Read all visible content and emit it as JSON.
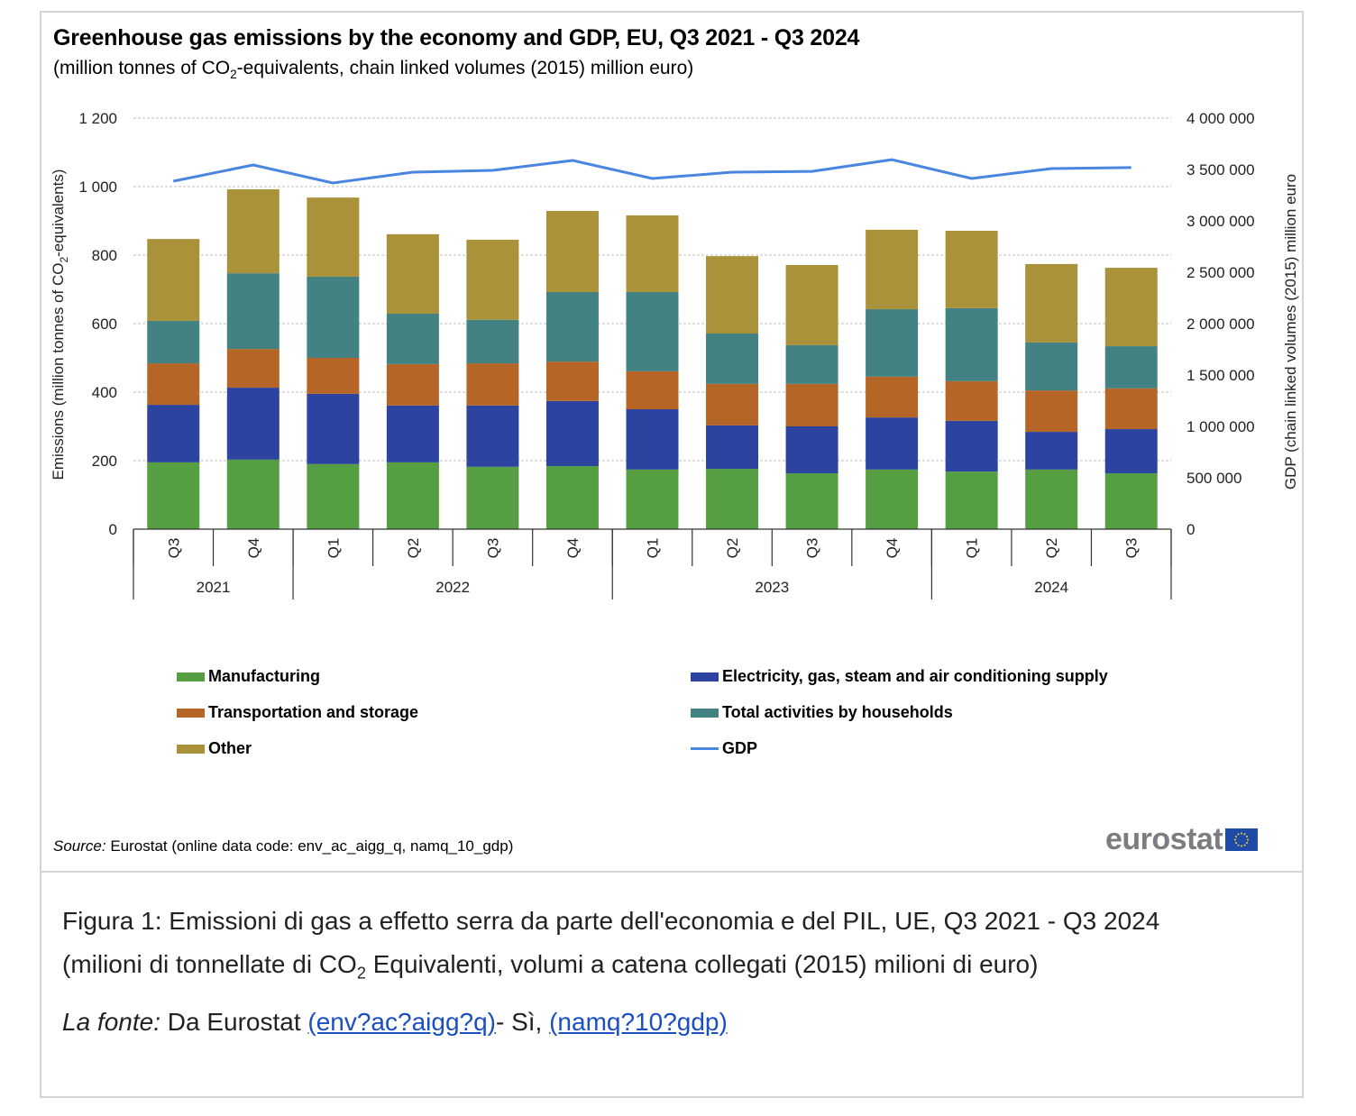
{
  "figure": {
    "title": "Greenhouse gas emissions by the economy and GDP, EU, Q3 2021 - Q3 2024",
    "subtitle_before_sub": "(million tonnes of CO",
    "subtitle_sub": "2",
    "subtitle_after_sub": "-equivalents, chain linked volumes (2015) million euro)",
    "source_label": "Source:",
    "source_text": " Eurostat (online data code: env_ac_aigg_q, namq_10_gdp)",
    "logo_text": "eurostat",
    "logo_icon": "eu-flag-icon"
  },
  "caption": {
    "line1": "Figura 1: Emissioni di gas a effetto serra da parte dell'economia e del PIL, UE, Q3 2021 - Q3 2024",
    "line2_before_sub": "(milioni di tonnellate di CO",
    "line2_sub": "2",
    "line2_after_sub": " Equivalenti, volumi a catena collegati (2015) milioni di euro)",
    "source_label": "La fonte:",
    "source_text": " Da Eurostat ",
    "link1": "(env?ac?aigg?q)",
    "separator": "- Sì, ",
    "link2": "(namq?10?gdp)"
  },
  "chart_data": {
    "type": "bar",
    "stacked": true,
    "title": "Greenhouse gas emissions by the economy and GDP, EU, Q3 2021 - Q3 2024",
    "subtitle": "(million tonnes of CO2-equivalents, chain linked volumes (2015) million euro)",
    "categories": [
      "Q3",
      "Q4",
      "Q1",
      "Q2",
      "Q3",
      "Q4",
      "Q1",
      "Q2",
      "Q3",
      "Q4",
      "Q1",
      "Q2",
      "Q3"
    ],
    "category_groups": [
      {
        "label": "2021",
        "count": 2
      },
      {
        "label": "2022",
        "count": 4
      },
      {
        "label": "2023",
        "count": 4
      },
      {
        "label": "2024",
        "count": 3
      }
    ],
    "ylabel": "Emissions (million tonnes of CO2-equivalents)",
    "ylabel_parts": [
      "Emissions (million tonnes of CO",
      "2",
      "-equivalents)"
    ],
    "y2label": "GDP (chain linked volumes (2015) million euro",
    "ylim": [
      0,
      1200
    ],
    "yticks": [
      0,
      200,
      400,
      600,
      800,
      1000,
      1200
    ],
    "ytick_labels": [
      "0",
      "200",
      "400",
      "600",
      "800",
      "1 000",
      "1 200"
    ],
    "y2lim": [
      0,
      4000000
    ],
    "y2ticks": [
      0,
      500000,
      1000000,
      1500000,
      2000000,
      2500000,
      3000000,
      3500000,
      4000000
    ],
    "y2tick_labels": [
      "0",
      "500 000",
      "1 000 000",
      "1 500 000",
      "2 000 000",
      "2 500 000",
      "3 000 000",
      "3 500 000",
      "4 000 000"
    ],
    "grid": true,
    "legend_position": "bottom",
    "series": [
      {
        "name": "Manufacturing",
        "color": "#559f42",
        "axis": "left",
        "values": [
          195,
          203,
          190,
          195,
          182,
          184,
          174,
          176,
          163,
          174,
          168,
          174,
          163
        ]
      },
      {
        "name": "Electricity, gas, steam and air conditioning supply",
        "color": "#2c44a0",
        "axis": "left",
        "values": [
          168,
          210,
          205,
          166,
          179,
          190,
          176,
          127,
          137,
          152,
          148,
          110,
          129
        ]
      },
      {
        "name": "Transportation and storage",
        "color": "#b56526",
        "axis": "left",
        "values": [
          121,
          113,
          105,
          121,
          123,
          115,
          111,
          121,
          124,
          119,
          116,
          121,
          119
        ]
      },
      {
        "name": "Total activities by households",
        "color": "#428283",
        "axis": "left",
        "values": [
          124,
          221,
          237,
          147,
          127,
          203,
          231,
          147,
          113,
          197,
          213,
          140,
          123
        ]
      },
      {
        "name": "Other",
        "color": "#aa923a",
        "axis": "left",
        "values": [
          239,
          245,
          231,
          232,
          234,
          237,
          224,
          226,
          234,
          232,
          226,
          229,
          229
        ]
      },
      {
        "name": "GDP",
        "color": "#4a86e0",
        "type": "line",
        "axis": "right",
        "values": [
          3386000,
          3544000,
          3368000,
          3474000,
          3491000,
          3588000,
          3412000,
          3474000,
          3482000,
          3596000,
          3412000,
          3509000,
          3518000
        ]
      }
    ],
    "legend": [
      {
        "name": "Manufacturing",
        "color": "#559f42",
        "kind": "bar"
      },
      {
        "name": "Electricity, gas, steam and air conditioning supply",
        "color": "#2c44a0",
        "kind": "bar"
      },
      {
        "name": "Transportation and storage",
        "color": "#b56526",
        "kind": "bar"
      },
      {
        "name": "Total activities by households",
        "color": "#428283",
        "kind": "bar"
      },
      {
        "name": "Other",
        "color": "#aa923a",
        "kind": "bar"
      },
      {
        "name": "GDP",
        "color": "#4a86e0",
        "kind": "line"
      }
    ]
  }
}
